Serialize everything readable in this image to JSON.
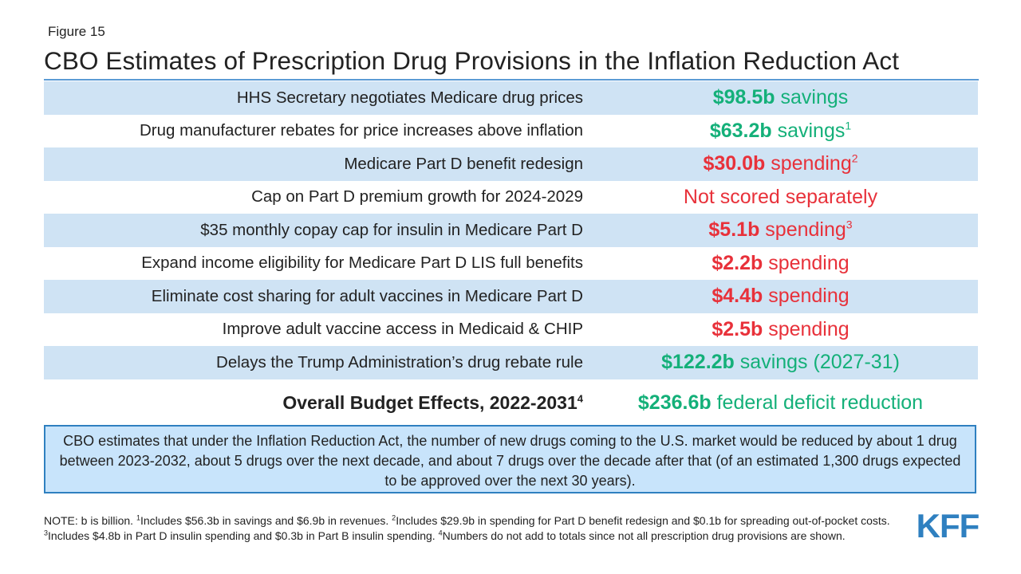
{
  "figure_label": "Figure 15",
  "title": "CBO Estimates of Prescription Drug Provisions in the Inflation Reduction Act",
  "colors": {
    "savings": "#14b079",
    "spending": "#e8313a",
    "row_shade": "#cfe3f4",
    "callout_bg": "#c8e4fb",
    "callout_border": "#2f80c0",
    "logo": "#2f80c0"
  },
  "rows": [
    {
      "label": "HHS Secretary negotiates Medicare drug prices",
      "amount": "$98.5b",
      "text": " savings",
      "sup": "",
      "color": "green"
    },
    {
      "label": "Drug manufacturer rebates for price increases above inflation",
      "amount": "$63.2b",
      "text": " savings",
      "sup": "1",
      "color": "green"
    },
    {
      "label": "Medicare Part D benefit redesign",
      "amount": "$30.0b",
      "text": " spending",
      "sup": "2",
      "color": "red"
    },
    {
      "label": "Cap on Part D premium growth for 2024-2029",
      "amount": "",
      "text": "Not scored separately",
      "sup": "",
      "color": "red"
    },
    {
      "label": "$35 monthly copay cap for insulin in Medicare Part D",
      "amount": "$5.1b",
      "text": " spending",
      "sup": "3",
      "color": "red"
    },
    {
      "label": "Expand income eligibility for Medicare Part D LIS full benefits",
      "amount": "$2.2b",
      "text": " spending",
      "sup": "",
      "color": "red"
    },
    {
      "label": "Eliminate cost sharing for adult vaccines in Medicare Part D",
      "amount": "$4.4b",
      "text": " spending",
      "sup": "",
      "color": "red"
    },
    {
      "label": "Improve adult vaccine access in Medicaid & CHIP",
      "amount": "$2.5b",
      "text": " spending",
      "sup": "",
      "color": "red"
    },
    {
      "label": "Delays the Trump Administration’s drug rebate rule",
      "amount": "$122.2b",
      "text": " savings (2027-31)",
      "sup": "",
      "color": "green"
    }
  ],
  "overall": {
    "label": "Overall Budget Effects, 2022-2031",
    "label_sup": "4",
    "amount": "$236.6b",
    "text": " federal deficit reduction"
  },
  "callout": "CBO estimates that under the Inflation Reduction Act, the number of new drugs coming to the U.S. market would be reduced by about 1 drug between 2023-2032, about 5 drugs over the next decade, and about 7 drugs over the decade after that (of an estimated 1,300 drugs expected to be approved over the next 30 years).",
  "note": {
    "n0": "NOTE: b is billion. ",
    "s1": "1",
    "n1": "Includes $56.3b in savings and $6.9b in revenues. ",
    "s2": "2",
    "n2": "Includes $29.9b in spending for Part D benefit redesign and $0.1b for spreading out-of-pocket costs. ",
    "s3": "3",
    "n3": "Includes $4.8b in Part D insulin spending and $0.3b in Part B insulin spending. ",
    "s4": "4",
    "n4": "Numbers do not add to totals since not all prescription drug provisions are shown."
  },
  "logo_text": "KFF"
}
